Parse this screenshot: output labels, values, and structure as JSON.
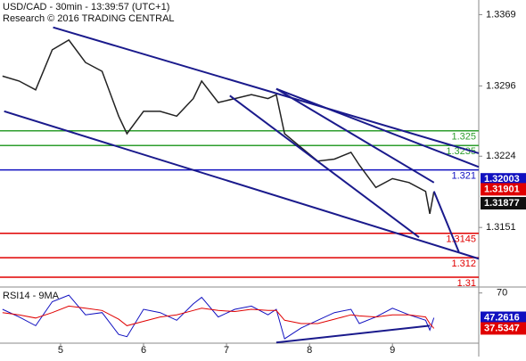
{
  "chart_data": {
    "type": "price",
    "title": "USD/CAD - 30min - 13:39:57 (UTC+1)",
    "subtitle": "Research © 2016 TRADING CENTRAL",
    "x": [
      4.3,
      4.5,
      4.7,
      4.9,
      5.1,
      5.3,
      5.5,
      5.7,
      5.8,
      6.0,
      6.2,
      6.4,
      6.6,
      6.7,
      6.9,
      7.1,
      7.3,
      7.5,
      7.6,
      7.7,
      7.9,
      8.1,
      8.3,
      8.5,
      8.6,
      8.8,
      9.0,
      9.2,
      9.4,
      9.45,
      9.5
    ],
    "series": [
      {
        "name": "USD/CAD",
        "color": "#222222",
        "values": [
          1.3306,
          1.3301,
          1.3292,
          1.3333,
          1.3343,
          1.332,
          1.3311,
          1.3265,
          1.3247,
          1.327,
          1.327,
          1.3265,
          1.3283,
          1.3301,
          1.3279,
          1.3283,
          1.3287,
          1.3283,
          1.3287,
          1.3247,
          1.3233,
          1.3219,
          1.3221,
          1.3228,
          1.3215,
          1.3192,
          1.3201,
          1.3197,
          1.3188,
          1.3165,
          1.31877
        ]
      }
    ],
    "xlim": [
      4.27,
      10.04
    ],
    "xticks": [
      5,
      6,
      7,
      8,
      9
    ],
    "ylim": [
      1.309,
      1.3384
    ],
    "yticks": [
      1.3369,
      1.3296,
      1.3224,
      1.3151
    ],
    "levels": [
      {
        "value": 1.325,
        "color": "#2e9e2e"
      },
      {
        "value": 1.3235,
        "color": "#2e9e2e"
      },
      {
        "value": 1.321,
        "color": "#1010c0"
      },
      {
        "value": 1.3145,
        "color": "#e00000"
      },
      {
        "value": 1.312,
        "color": "#e00000"
      },
      {
        "value": 1.31,
        "color": "#e00000"
      }
    ],
    "trendlines": [
      {
        "x": [
          4.91,
          10.04
        ],
        "y": [
          1.3356,
          1.3227
        ]
      },
      {
        "x": [
          4.32,
          10.04
        ],
        "y": [
          1.327,
          1.3119
        ]
      },
      {
        "x": [
          7.04,
          9.32
        ],
        "y": [
          1.3286,
          1.3141
        ]
      },
      {
        "x": [
          7.6,
          10.04
        ],
        "y": [
          1.3293,
          1.3213
        ]
      },
      {
        "x": [
          7.6,
          9.5
        ],
        "y": [
          1.3293,
          1.3197
        ]
      },
      {
        "x": [
          9.5,
          9.8
        ],
        "y": [
          1.3188,
          1.3126
        ]
      }
    ],
    "price_tags": [
      {
        "value": 1.32003,
        "color": "#1010c0"
      },
      {
        "value": 1.31901,
        "color": "#e00000"
      },
      {
        "value": 1.31877,
        "color": "#111111"
      }
    ],
    "rsi": {
      "title": "RSI14 - 9MA",
      "ylim": [
        24,
        73
      ],
      "yticks": [
        70
      ],
      "series": [
        {
          "name": "RSI14",
          "color": "#1010c0",
          "values": [
            55,
            48,
            40,
            62,
            68,
            50,
            52,
            32,
            30,
            55,
            52,
            45,
            60,
            66,
            48,
            55,
            58,
            50,
            55,
            28,
            38,
            45,
            52,
            55,
            42,
            48,
            56,
            50,
            45,
            36,
            47.2616
          ]
        },
        {
          "name": "9MA",
          "color": "#e00000",
          "values": [
            52,
            50,
            47,
            52,
            58,
            56,
            54,
            46,
            40,
            44,
            48,
            50,
            54,
            56,
            54,
            53,
            55,
            54,
            54,
            45,
            42,
            42,
            46,
            50,
            49,
            48,
            50,
            50,
            48,
            42,
            37.5347
          ]
        }
      ],
      "trendline": {
        "x": [
          7.6,
          9.45
        ],
        "y": [
          24.6,
          40.0
        ]
      },
      "tags": [
        {
          "value": 47.2616,
          "color": "#1010c0"
        },
        {
          "value": 37.5347,
          "color": "#e00000"
        }
      ]
    }
  }
}
